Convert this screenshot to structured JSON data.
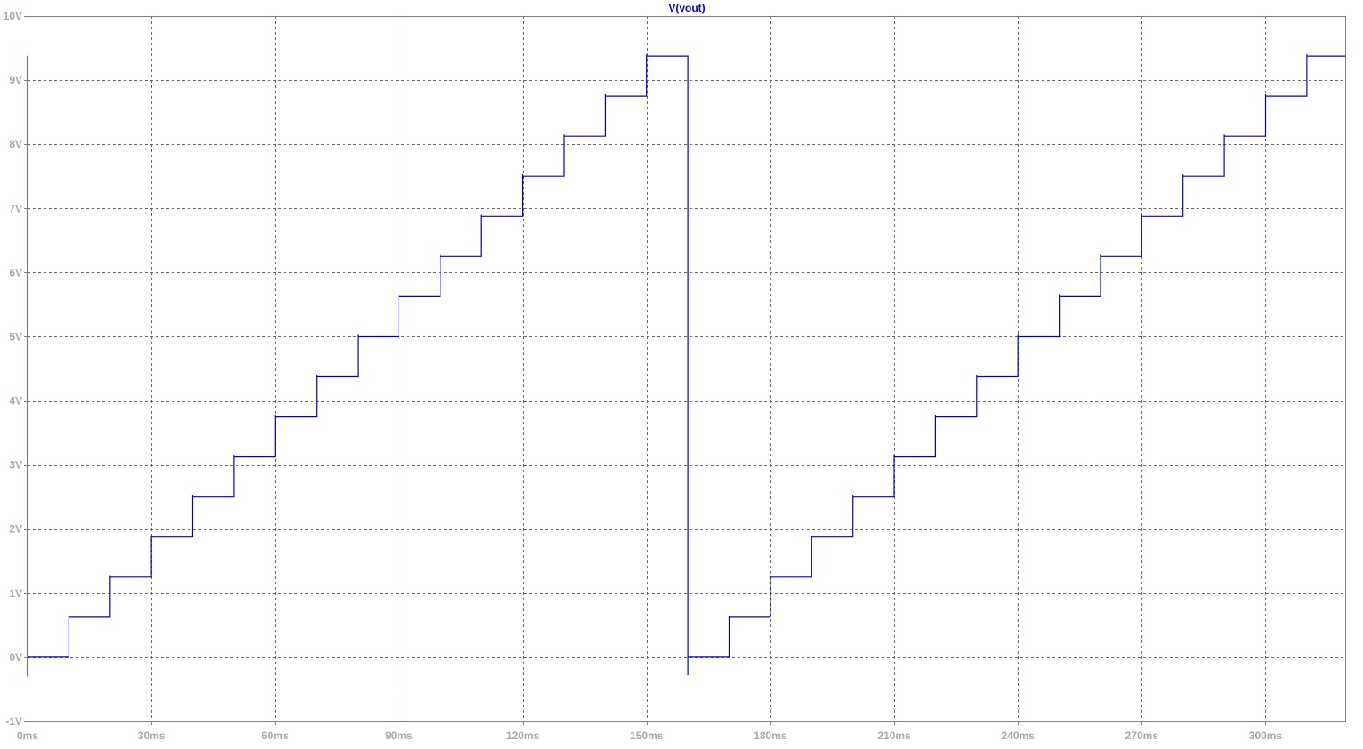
{
  "chart_data": {
    "type": "line",
    "title": "V(vout)",
    "xlabel": "",
    "ylabel": "",
    "xlim": [
      0,
      319.3
    ],
    "ylim": [
      -1,
      10
    ],
    "grid": true,
    "x_ticks": [
      "0ms",
      "30ms",
      "60ms",
      "90ms",
      "120ms",
      "150ms",
      "180ms",
      "210ms",
      "240ms",
      "270ms",
      "300ms"
    ],
    "x_tick_values": [
      0,
      30,
      60,
      90,
      120,
      150,
      180,
      210,
      240,
      270,
      300
    ],
    "y_ticks": [
      "-1V",
      "0V",
      "1V",
      "2V",
      "3V",
      "4V",
      "5V",
      "6V",
      "7V",
      "8V",
      "9V",
      "10V"
    ],
    "y_tick_values": [
      -1,
      0,
      1,
      2,
      3,
      4,
      5,
      6,
      7,
      8,
      9,
      10
    ],
    "series": [
      {
        "name": "V(vout)",
        "color": "#0000cc",
        "x": [
          0,
          0,
          0,
          10,
          10,
          10,
          20,
          20,
          20,
          30,
          30,
          30,
          40,
          40,
          40,
          50,
          50,
          50,
          60,
          60,
          60,
          70,
          70,
          70,
          80,
          80,
          80,
          90,
          90,
          90,
          100,
          100,
          100,
          110,
          110,
          110,
          120,
          120,
          120,
          130,
          130,
          130,
          140,
          140,
          140,
          150,
          150,
          150,
          160,
          160,
          160,
          170,
          170,
          170,
          180,
          180,
          180,
          190,
          190,
          190,
          200,
          200,
          200,
          210,
          210,
          210,
          220,
          220,
          220,
          230,
          230,
          230,
          240,
          240,
          240,
          250,
          250,
          250,
          260,
          260,
          260,
          270,
          270,
          270,
          280,
          280,
          280,
          290,
          290,
          290,
          300,
          300,
          300,
          310,
          310,
          310,
          319.3
        ],
        "y": [
          9.38,
          -0.3,
          0,
          0,
          0.65,
          0.625,
          0.625,
          1.28,
          1.25,
          1.25,
          1.9,
          1.875,
          1.875,
          2.53,
          2.5,
          2.5,
          3.15,
          3.125,
          3.125,
          3.78,
          3.75,
          3.75,
          4.4,
          4.375,
          4.375,
          5.03,
          5.0,
          5.0,
          5.65,
          5.625,
          5.625,
          6.28,
          6.25,
          6.25,
          6.9,
          6.875,
          6.875,
          7.53,
          7.5,
          7.5,
          8.15,
          8.125,
          8.125,
          8.78,
          8.75,
          8.75,
          9.4,
          9.375,
          9.375,
          -0.28,
          0,
          0,
          0.65,
          0.625,
          0.625,
          1.28,
          1.25,
          1.25,
          1.9,
          1.875,
          1.875,
          2.53,
          2.5,
          2.5,
          3.15,
          3.125,
          3.125,
          3.78,
          3.75,
          3.75,
          4.4,
          4.375,
          4.375,
          5.03,
          5.0,
          5.0,
          5.65,
          5.625,
          5.625,
          6.28,
          6.25,
          6.25,
          6.9,
          6.875,
          6.875,
          7.53,
          7.5,
          7.5,
          8.15,
          8.125,
          8.125,
          8.78,
          8.75,
          8.75,
          9.4,
          9.375,
          9.375
        ]
      }
    ]
  },
  "colors": {
    "grid": "#666666",
    "axis_text": "#a8a8a8",
    "trace": "#0000cc",
    "frame": "#808080"
  }
}
